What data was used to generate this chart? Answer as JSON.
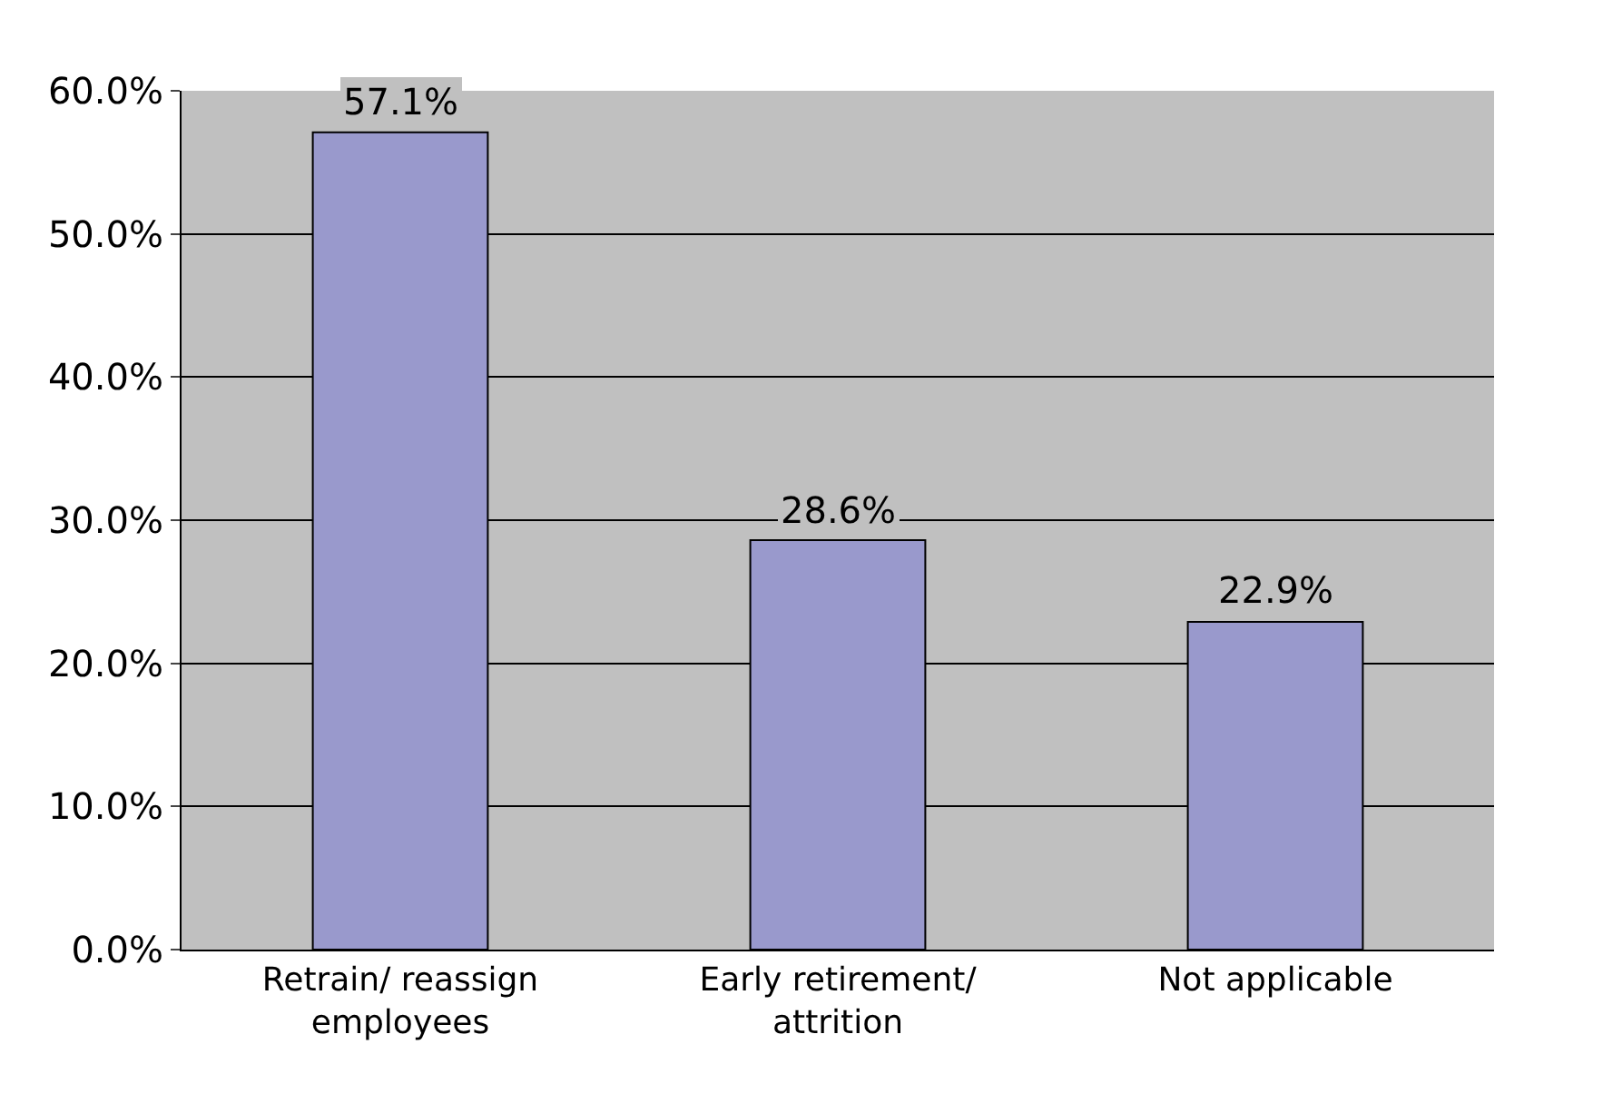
{
  "chart_data": {
    "type": "bar",
    "categories": [
      "Retrain/ reassign employees",
      "Early retirement/ attrition",
      "Not applicable"
    ],
    "values": [
      57.1,
      28.6,
      22.9
    ],
    "value_labels": [
      "57.1%",
      "28.6%",
      "22.9%"
    ],
    "color": "#9999cc",
    "ylim": [
      0,
      60
    ],
    "yticks": [
      {
        "value": 0,
        "label": "0.0%"
      },
      {
        "value": 10,
        "label": "10.0%"
      },
      {
        "value": 20,
        "label": "20.0%"
      },
      {
        "value": 30,
        "label": "30.0%"
      },
      {
        "value": 40,
        "label": "40.0%"
      },
      {
        "value": 50,
        "label": "50.0%"
      },
      {
        "value": 60,
        "label": "60.0%"
      }
    ],
    "grid": "y",
    "legend": false
  }
}
